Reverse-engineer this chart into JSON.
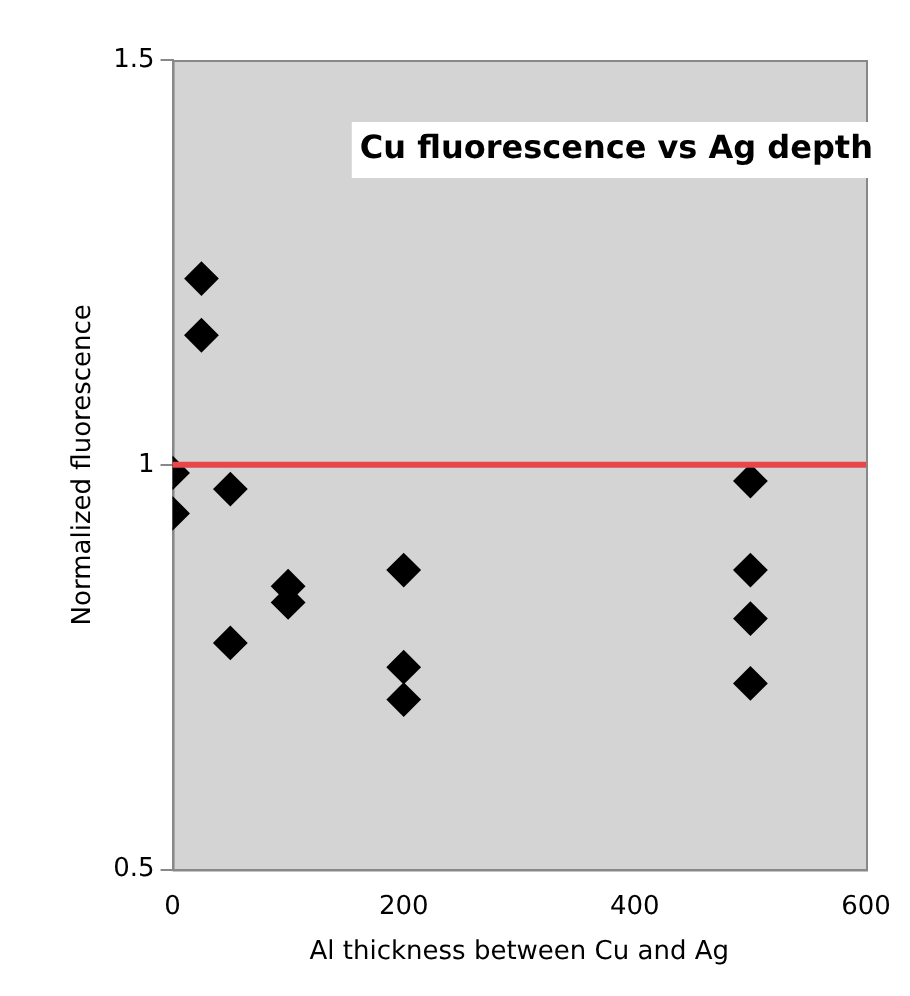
{
  "chart_data": {
    "type": "scatter",
    "title": "Cu fluorescence vs Ag depth",
    "xlabel": "Al thickness between Cu and Ag",
    "ylabel": "Normalized fluorescence",
    "x": [
      0,
      0,
      25,
      25,
      50,
      50,
      100,
      100,
      200,
      200,
      200,
      500,
      500,
      500,
      500
    ],
    "values": [
      0.99,
      0.94,
      1.23,
      1.16,
      0.97,
      0.78,
      0.85,
      0.83,
      0.87,
      0.75,
      0.71,
      0.98,
      0.87,
      0.81,
      0.73
    ],
    "color": "#000000",
    "marker": "diamond",
    "xlim": [
      0,
      600
    ],
    "xticks": [
      0,
      200,
      400,
      600
    ],
    "ylim": [
      0.5,
      1.5
    ],
    "yticks": [
      0.5,
      1,
      1.5
    ],
    "ref_lines": [
      {
        "axis": "y",
        "value": 1,
        "color": "#e8474a",
        "line_style": "solid"
      }
    ],
    "grid": false,
    "legend": false
  }
}
